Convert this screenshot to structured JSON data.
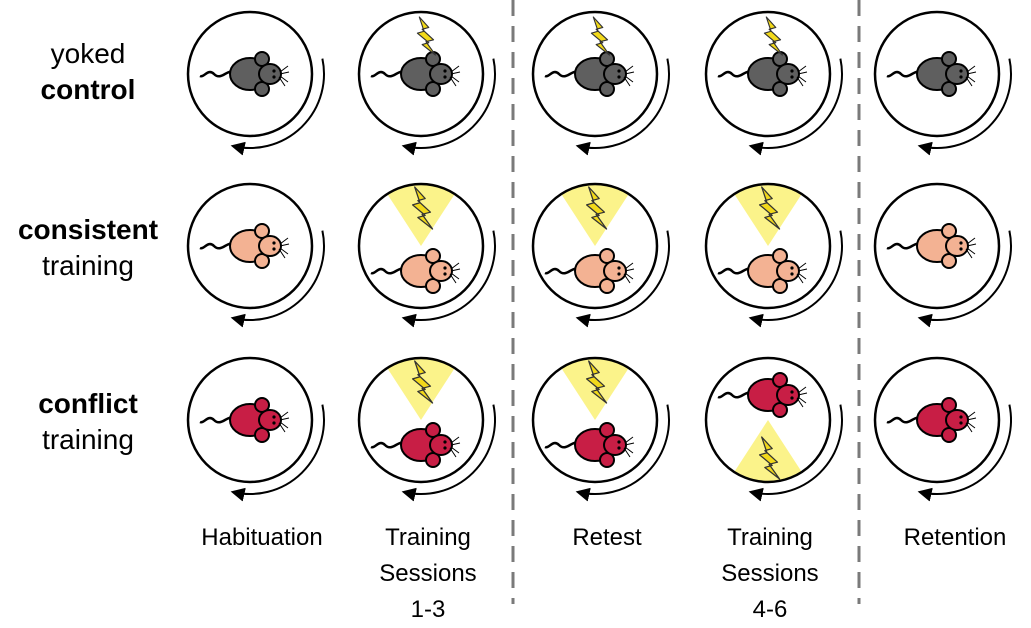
{
  "rows": [
    {
      "id": "yoked",
      "line1": "yoked",
      "line2": "control",
      "bold_line": 2,
      "mouse_color": "#5f5f5f"
    },
    {
      "id": "consistent",
      "line1": "consistent",
      "line2": "training",
      "bold_line": 1,
      "mouse_color": "#f3b293"
    },
    {
      "id": "conflict",
      "line1": "conflict",
      "line2": "training",
      "bold_line": 1,
      "mouse_color": "#c81e45"
    }
  ],
  "columns": [
    {
      "id": "habituation",
      "label": "Habituation"
    },
    {
      "id": "training-1-3",
      "label_lines": [
        "Training",
        "Sessions",
        "1-3"
      ]
    },
    {
      "id": "retest",
      "label": "Retest"
    },
    {
      "id": "training-4-6",
      "label_lines": [
        "Training",
        "Sessions",
        "4-6"
      ]
    },
    {
      "id": "retention",
      "label": "Retention"
    }
  ],
  "colors": {
    "shock_zone": "#fbf38a",
    "lightning": "#f2d91a",
    "outline": "#000000",
    "divider": "#7a7a7a"
  },
  "arena_rotation": "clockwise",
  "cells": [
    [
      {
        "zone": "none",
        "mouse": "center",
        "lightning_on_mouse": false
      },
      {
        "zone": "none",
        "mouse": "center",
        "lightning_on_mouse": true
      },
      {
        "zone": "none",
        "mouse": "center",
        "lightning_on_mouse": true
      },
      {
        "zone": "none",
        "mouse": "center",
        "lightning_on_mouse": true
      },
      {
        "zone": "none",
        "mouse": "center",
        "lightning_on_mouse": false
      }
    ],
    [
      {
        "zone": "none",
        "mouse": "center",
        "lightning_on_mouse": false
      },
      {
        "zone": "top",
        "mouse": "bottom",
        "lightning_on_mouse": false
      },
      {
        "zone": "top",
        "mouse": "bottom",
        "lightning_on_mouse": false
      },
      {
        "zone": "top",
        "mouse": "bottom",
        "lightning_on_mouse": false
      },
      {
        "zone": "none",
        "mouse": "center",
        "lightning_on_mouse": false
      }
    ],
    [
      {
        "zone": "none",
        "mouse": "center",
        "lightning_on_mouse": false
      },
      {
        "zone": "top",
        "mouse": "bottom",
        "lightning_on_mouse": false
      },
      {
        "zone": "top",
        "mouse": "bottom",
        "lightning_on_mouse": false
      },
      {
        "zone": "bottom",
        "mouse": "top",
        "lightning_on_mouse": false
      },
      {
        "zone": "none",
        "mouse": "center",
        "lightning_on_mouse": false
      }
    ]
  ]
}
